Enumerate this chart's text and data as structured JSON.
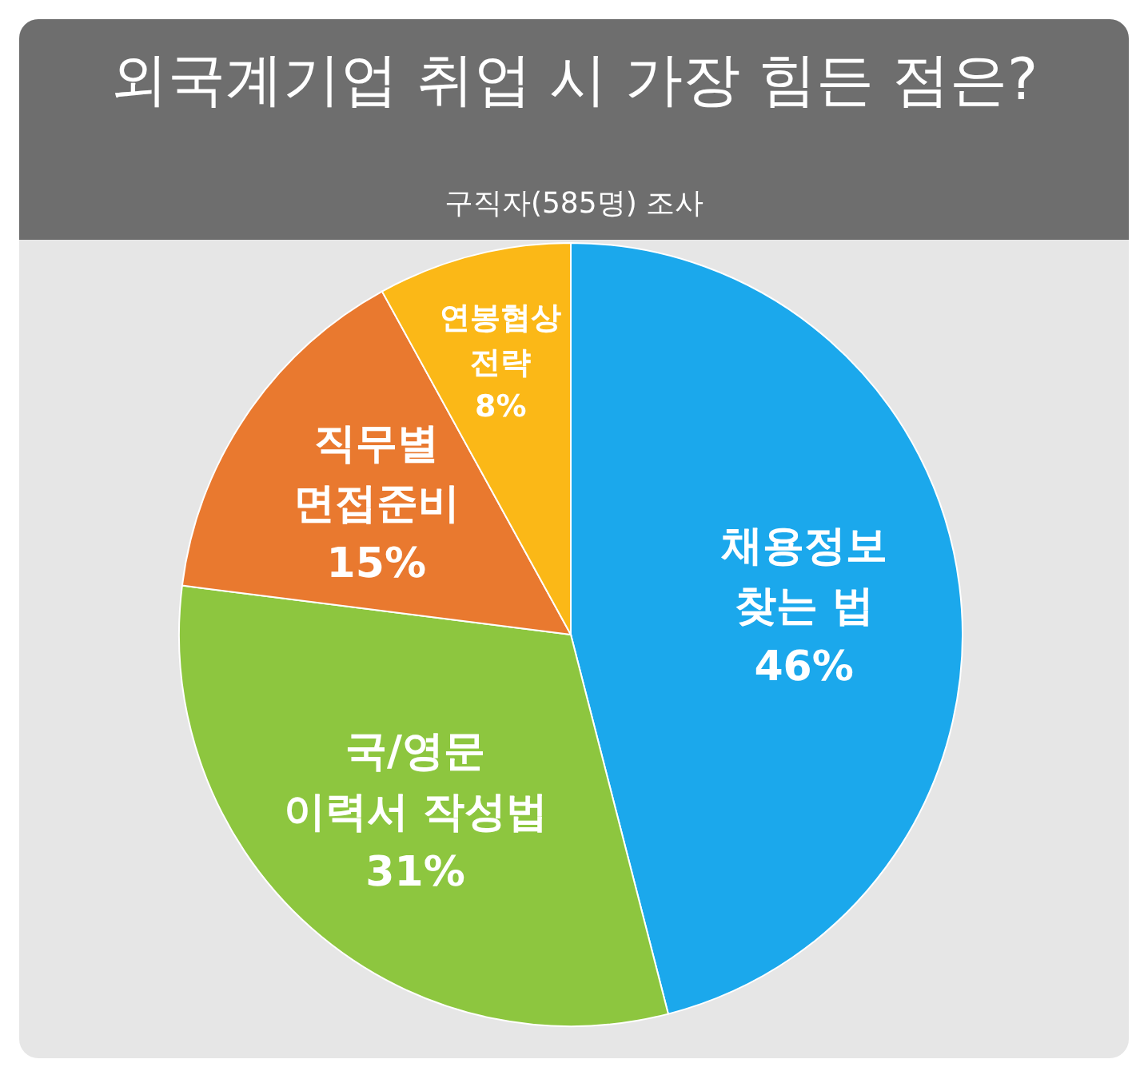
{
  "chart_data": {
    "type": "pie",
    "title": "외국계기업 취업 시 가장 힘든 점은?",
    "subtitle": "구직자(585명) 조사",
    "categories": [
      "채용정보 찾는 법",
      "국/영문 이력서 작성법",
      "직무별 면접준비",
      "연봉협상 전략"
    ],
    "values": [
      46,
      31,
      15,
      8
    ],
    "value_labels": [
      "46%",
      "31%",
      "15%",
      "8%"
    ],
    "colors": [
      "#1ba8ec",
      "#8dc63f",
      "#e9792f",
      "#fbb817"
    ]
  }
}
